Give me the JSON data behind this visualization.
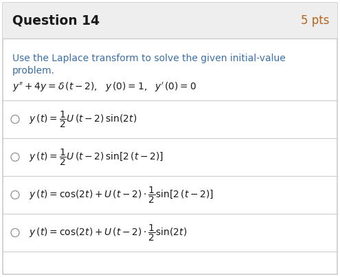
{
  "title": "Question 14",
  "pts": "5 pts",
  "header_bg": "#eeeeee",
  "body_bg": "#ffffff",
  "border_color": "#cccccc",
  "title_color": "#1a1a1a",
  "pts_color": "#b5651d",
  "instruction_color": "#3a6fa8",
  "math_color": "#1a1a1a",
  "instruction_line1": "Use the Laplace transform to solve the given initial-value",
  "instruction_line2": "problem.",
  "equation": "$y'' + 4y = \\delta\\,(t - 2),\\ \\ y\\,(0) = 1,\\ \\ y'\\,(0) = 0$",
  "options": [
    "$y\\,(t) = \\dfrac{1}{2}U\\,(t - 2)\\,\\sin(2t)$",
    "$y\\,(t) = \\dfrac{1}{2}U\\,(t - 2)\\,\\sin[2\\,(t - 2)]$",
    "$y\\,(t) = \\cos(2t) + U\\,(t - 2) \\cdot \\dfrac{1}{2}\\sin[2\\,(t - 2)]$",
    "$y\\,(t) = \\cos(2t) + U\\,(t - 2) \\cdot \\dfrac{1}{2}\\sin(2t)$"
  ],
  "figsize": [
    4.95,
    4.03
  ],
  "dpi": 100
}
